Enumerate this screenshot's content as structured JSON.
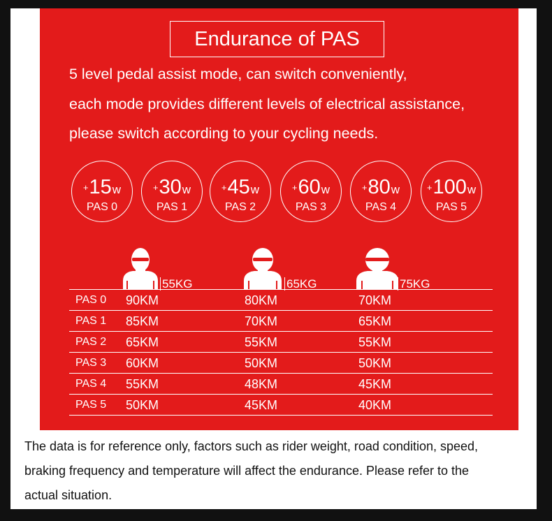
{
  "title": "Endurance of PAS",
  "intro": [
    "5 level pedal assist mode, can switch conveniently,",
    "each mode provides different levels of electrical assistance,",
    "please switch according to your cycling needs."
  ],
  "modes": [
    {
      "plus": "+",
      "watt": "15",
      "unit": "w",
      "level": "PAS 0"
    },
    {
      "plus": "+",
      "watt": "30",
      "unit": "w",
      "level": "PAS 1"
    },
    {
      "plus": "+",
      "watt": "45",
      "unit": "w",
      "level": "PAS 2"
    },
    {
      "plus": "+",
      "watt": "60",
      "unit": "w",
      "level": "PAS 3"
    },
    {
      "plus": "+",
      "watt": "80",
      "unit": "w",
      "level": "PAS 4"
    },
    {
      "plus": "+",
      "watt": "100",
      "unit": "w",
      "level": "PAS 5"
    }
  ],
  "weights": [
    "55KG",
    "65KG",
    "75KG"
  ],
  "rows": [
    {
      "level": "PAS 0",
      "values": [
        "90KM",
        "80KM",
        "70KM"
      ]
    },
    {
      "level": "PAS 1",
      "values": [
        "85KM",
        "70KM",
        "65KM"
      ]
    },
    {
      "level": "PAS 2",
      "values": [
        "65KM",
        "55KM",
        "55KM"
      ]
    },
    {
      "level": "PAS 3",
      "values": [
        "60KM",
        "50KM",
        "50KM"
      ]
    },
    {
      "level": "PAS 4",
      "values": [
        "55KM",
        "48KM",
        "45KM"
      ]
    },
    {
      "level": "PAS 5",
      "values": [
        "50KM",
        "45KM",
        "40KM"
      ]
    }
  ],
  "note": [
    "The data is for reference only, factors such as rider weight, road condition, speed,",
    "braking frequency and temperature will affect the endurance. Please refer to the",
    "actual situation."
  ],
  "colors": {
    "panel": "#e31b1b",
    "text_on_panel": "#ffffff",
    "note_text": "#111111"
  }
}
